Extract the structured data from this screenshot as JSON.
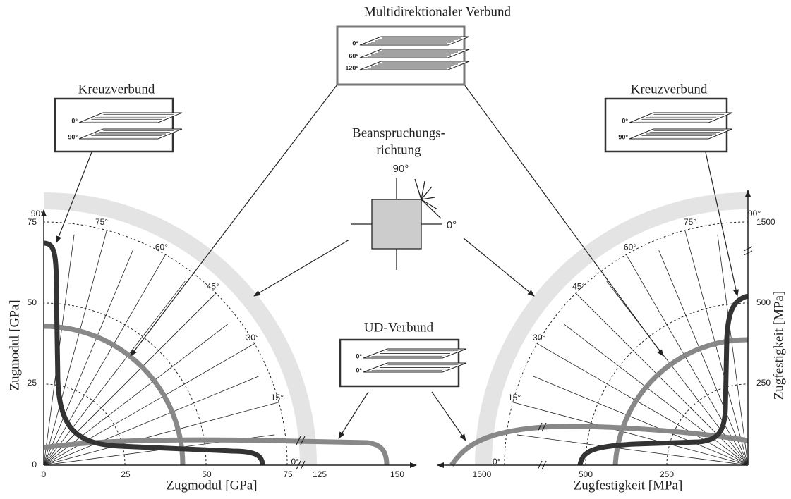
{
  "multidirectional": {
    "title": "Multidirektionaler Verbund",
    "layers": [
      "0°",
      "60°",
      "120°"
    ]
  },
  "cross_left": {
    "title": "Kreuzverbund",
    "layers": [
      "0°",
      "90°"
    ]
  },
  "cross_right": {
    "title": "Kreuzverbund",
    "layers": [
      "0°",
      "90°"
    ]
  },
  "load_direction": {
    "label_lines": [
      "Beanspruchungs-",
      "richtung"
    ],
    "angle_90": "90°",
    "angle_0": "0°"
  },
  "ud": {
    "title": "UD-Verbund",
    "layers": [
      "0°",
      "0°"
    ]
  },
  "left_chart": {
    "x_label": "Zugmodul [GPa]",
    "y_label": "Zugmodul [GPa]",
    "x_ticks": [
      "0",
      "25",
      "50",
      "75",
      "125",
      "150"
    ],
    "y_ticks": [
      "0",
      "25",
      "50",
      "75"
    ],
    "angles": [
      "0°",
      "15°",
      "30°",
      "45°",
      "60°",
      "75°",
      "90°"
    ]
  },
  "right_chart": {
    "x_label": "Zugfestigkeit [MPa]",
    "y_label": "Zugfestigkeit [MPa]",
    "x_ticks": [
      "1500",
      "500",
      "250"
    ],
    "y_ticks": [
      "250",
      "500",
      "1500"
    ],
    "angles": [
      "0°",
      "15°",
      "30°",
      "45°",
      "60°",
      "75°",
      "90°"
    ]
  }
}
